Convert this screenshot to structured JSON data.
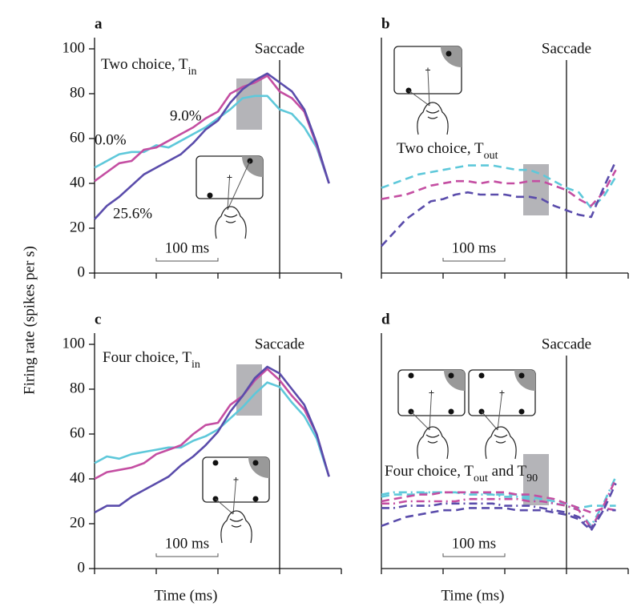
{
  "chart_data": [
    {
      "type": "line",
      "panel": "a",
      "label": [
        "Two choice, T",
        "in"
      ],
      "ylabel": "Firing rate (spikes per s)",
      "x": [
        -300,
        -280,
        -260,
        -240,
        -220,
        -200,
        -180,
        -160,
        -140,
        -120,
        -100,
        -80,
        -60,
        -40,
        -20,
        0,
        20,
        40,
        60,
        80
      ],
      "xlim": [
        -300,
        100
      ],
      "xticks": [
        -300,
        -200,
        -100,
        0,
        100
      ],
      "ylim": [
        0,
        105
      ],
      "yticks": [
        0,
        20,
        40,
        60,
        80,
        100
      ],
      "saccade": {
        "label": "Saccade",
        "x": 0
      },
      "scale_bar": {
        "label": "100 ms",
        "x": [
          -200,
          -100
        ]
      },
      "series": [
        {
          "name": "0.0%",
          "color": "#5ec8da",
          "dash": "solid",
          "values": [
            47,
            50,
            53,
            54,
            54,
            57,
            56,
            59,
            62,
            65,
            69,
            73,
            78,
            79,
            79,
            73,
            71,
            65,
            56,
            40
          ]
        },
        {
          "name": "9.0%",
          "color": "#c44ea2",
          "dash": "solid",
          "values": [
            41,
            45,
            49,
            50,
            55,
            56,
            59,
            62,
            65,
            69,
            72,
            80,
            83,
            85,
            88,
            81,
            78,
            72,
            57,
            40
          ]
        },
        {
          "name": "25.6%",
          "color": "#5a4cab",
          "dash": "solid",
          "values": [
            24,
            30,
            34,
            39,
            44,
            47,
            50,
            53,
            58,
            64,
            68,
            76,
            82,
            86,
            89,
            85,
            81,
            73,
            58,
            40
          ]
        }
      ]
    },
    {
      "type": "line",
      "panel": "b",
      "label": [
        "Two choice, T",
        "out"
      ],
      "x": [
        -300,
        -280,
        -260,
        -240,
        -220,
        -200,
        -180,
        -160,
        -140,
        -120,
        -100,
        -80,
        -60,
        -40,
        -20,
        0,
        20,
        40,
        60,
        80
      ],
      "xlim": [
        -300,
        100
      ],
      "xticks": [
        -300,
        -200,
        -100,
        0,
        100
      ],
      "ylim": [
        0,
        105
      ],
      "saccade": {
        "label": "Saccade",
        "x": 0
      },
      "scale_bar": {
        "label": "100 ms",
        "x": [
          -200,
          -100
        ]
      },
      "series": [
        {
          "color": "#5ec8da",
          "dash": "dashed",
          "values": [
            38,
            40,
            42,
            44,
            45,
            46,
            47,
            48,
            48,
            48,
            47,
            46,
            46,
            44,
            41,
            38,
            36,
            29,
            34,
            43
          ]
        },
        {
          "color": "#c44ea2",
          "dash": "dashed",
          "values": [
            33,
            34,
            35,
            37,
            39,
            40,
            41,
            41,
            40,
            41,
            40,
            40,
            41,
            41,
            39,
            37,
            33,
            30,
            36,
            46
          ]
        },
        {
          "color": "#5a4cab",
          "dash": "dashed",
          "values": [
            12,
            18,
            24,
            28,
            32,
            33,
            35,
            36,
            35,
            35,
            35,
            34,
            34,
            33,
            30,
            28,
            26,
            25,
            38,
            50
          ]
        }
      ]
    },
    {
      "type": "line",
      "panel": "c",
      "label": [
        "Four choice, T",
        "in"
      ],
      "xlabel": "Time (ms)",
      "x": [
        -300,
        -280,
        -260,
        -240,
        -220,
        -200,
        -180,
        -160,
        -140,
        -120,
        -100,
        -80,
        -60,
        -40,
        -20,
        0,
        20,
        40,
        60,
        80
      ],
      "xlim": [
        -300,
        100
      ],
      "xticks": [
        -300,
        -200,
        -100,
        0,
        100
      ],
      "ylim": [
        0,
        105
      ],
      "yticks": [
        0,
        20,
        40,
        60,
        80,
        100
      ],
      "saccade": {
        "label": "Saccade",
        "x": 0
      },
      "scale_bar": {
        "label": "100 ms",
        "x": [
          -200,
          -100
        ]
      },
      "series": [
        {
          "color": "#5ec8da",
          "dash": "solid",
          "values": [
            47,
            50,
            49,
            51,
            52,
            53,
            54,
            54,
            57,
            59,
            62,
            67,
            72,
            78,
            83,
            81,
            74,
            68,
            58,
            41
          ]
        },
        {
          "color": "#c44ea2",
          "dash": "solid",
          "values": [
            40,
            43,
            44,
            45,
            47,
            51,
            53,
            55,
            60,
            64,
            65,
            73,
            77,
            84,
            89,
            84,
            77,
            71,
            60,
            41
          ]
        },
        {
          "color": "#5a4cab",
          "dash": "solid",
          "values": [
            25,
            28,
            28,
            32,
            35,
            38,
            41,
            46,
            50,
            55,
            61,
            70,
            77,
            85,
            90,
            87,
            80,
            73,
            60,
            41
          ]
        }
      ]
    },
    {
      "type": "line",
      "panel": "d",
      "label": [
        "Four choice, T",
        "out",
        " and T",
        "90"
      ],
      "xlabel": "Time (ms)",
      "x": [
        -300,
        -280,
        -260,
        -240,
        -220,
        -200,
        -180,
        -160,
        -140,
        -120,
        -100,
        -80,
        -60,
        -40,
        -20,
        0,
        20,
        40,
        60,
        80
      ],
      "xlim": [
        -300,
        100
      ],
      "xticks": [
        -300,
        -200,
        -100,
        0,
        100
      ],
      "ylim": [
        0,
        105
      ],
      "saccade": {
        "label": "Saccade",
        "x": 0
      },
      "scale_bar": {
        "label": "100 ms",
        "x": [
          -200,
          -100
        ]
      },
      "series": [
        {
          "color": "#5ec8da",
          "dash": "dashed",
          "values": [
            32,
            33,
            33,
            33,
            34,
            34,
            34,
            34,
            34,
            33,
            33,
            33,
            32,
            31,
            30,
            29,
            27,
            28,
            28,
            28
          ]
        },
        {
          "color": "#5ec8da",
          "dash": "dashdot",
          "values": [
            33,
            34,
            34,
            34,
            34,
            34,
            34,
            33,
            33,
            33,
            32,
            32,
            31,
            30,
            29,
            28,
            26,
            19,
            29,
            41
          ]
        },
        {
          "color": "#c44ea2",
          "dash": "dashed",
          "values": [
            30,
            31,
            32,
            33,
            33,
            34,
            34,
            34,
            34,
            34,
            34,
            33,
            33,
            32,
            31,
            29,
            27,
            25,
            27,
            26
          ]
        },
        {
          "color": "#c44ea2",
          "dash": "dashdot",
          "values": [
            29,
            29,
            30,
            30,
            30,
            30,
            30,
            31,
            31,
            31,
            31,
            31,
            30,
            30,
            29,
            28,
            26,
            18,
            28,
            40
          ]
        },
        {
          "color": "#5a4cab",
          "dash": "dashed",
          "values": [
            19,
            21,
            23,
            24,
            25,
            26,
            26,
            27,
            27,
            27,
            27,
            26,
            26,
            26,
            25,
            24,
            22,
            17,
            26,
            38
          ]
        },
        {
          "color": "#5a4cab",
          "dash": "dashdot",
          "values": [
            27,
            27,
            28,
            28,
            28,
            29,
            29,
            29,
            29,
            29,
            28,
            28,
            28,
            27,
            26,
            25,
            23,
            18,
            26,
            26
          ]
        }
      ]
    }
  ]
}
